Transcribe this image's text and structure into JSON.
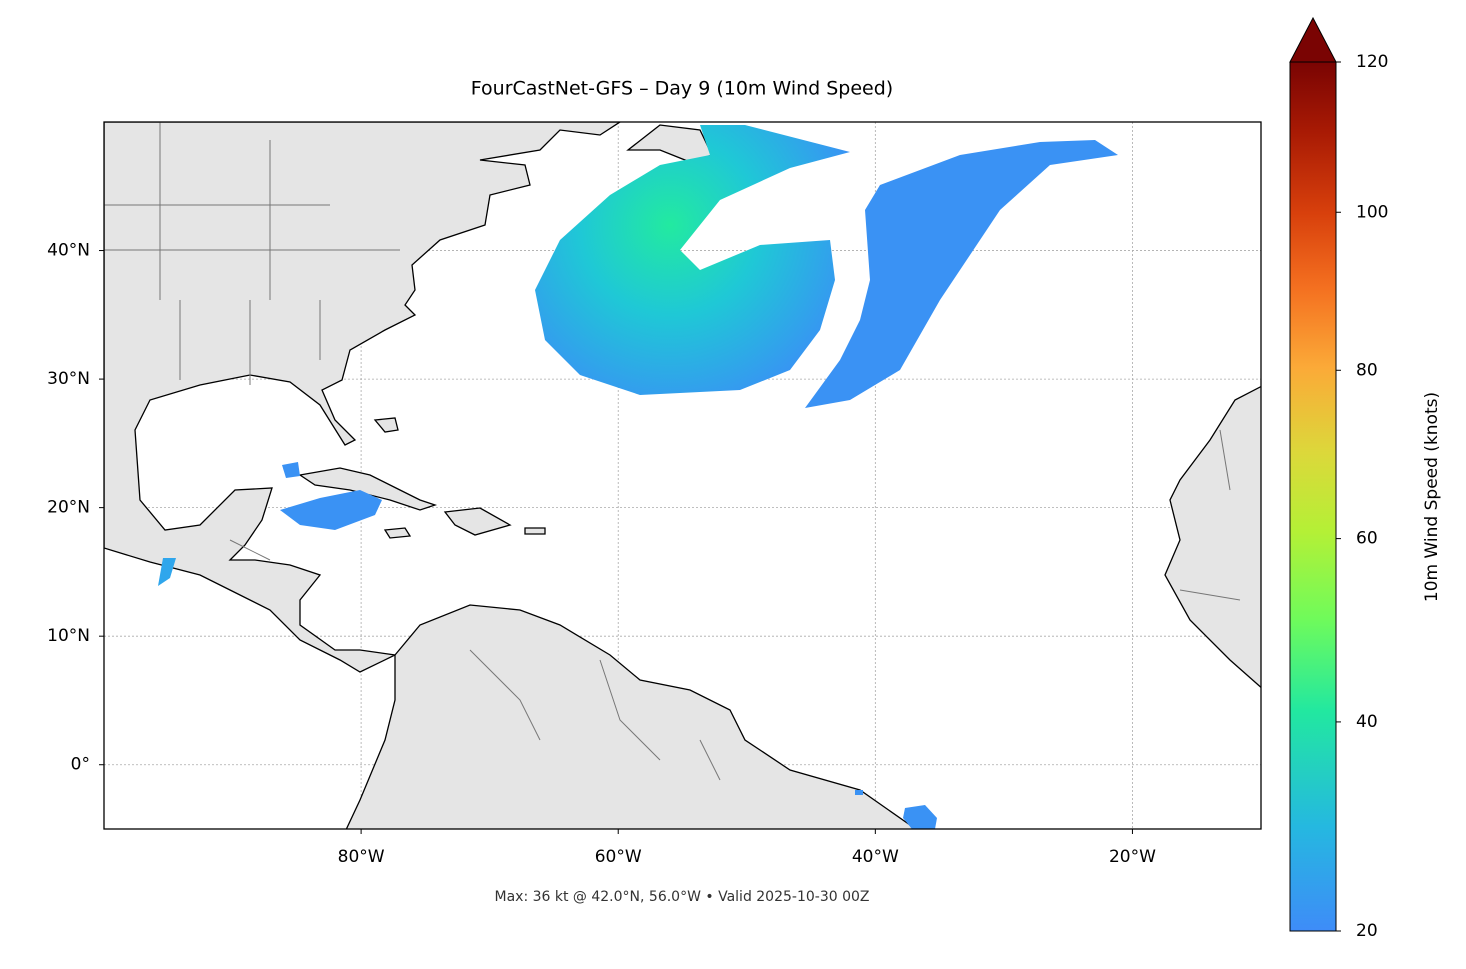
{
  "map": {
    "title": "FourCastNet-GFS – Day 9 (10m Wind Speed)",
    "note": "Max: 36 kt @ 42.0°N, 56.0°W • Valid 2025-10-30 00Z",
    "lon_range": [
      -100,
      -10
    ],
    "lat_range": [
      -5,
      50
    ],
    "xticks": [
      {
        "value": -80,
        "label": "80°W"
      },
      {
        "value": -60,
        "label": "60°W"
      },
      {
        "value": -40,
        "label": "40°W"
      },
      {
        "value": -20,
        "label": "20°W"
      }
    ],
    "yticks": [
      {
        "value": 0,
        "label": "0°"
      },
      {
        "value": 10,
        "label": "10°N"
      },
      {
        "value": 20,
        "label": "20°N"
      },
      {
        "value": 30,
        "label": "30°N"
      },
      {
        "value": 40,
        "label": "40°N"
      }
    ],
    "grid": true,
    "colorbar": {
      "label": "10m Wind Speed (knots)",
      "range": [
        20,
        120
      ],
      "ticks": [
        20,
        40,
        60,
        80,
        100,
        120
      ]
    }
  }
}
